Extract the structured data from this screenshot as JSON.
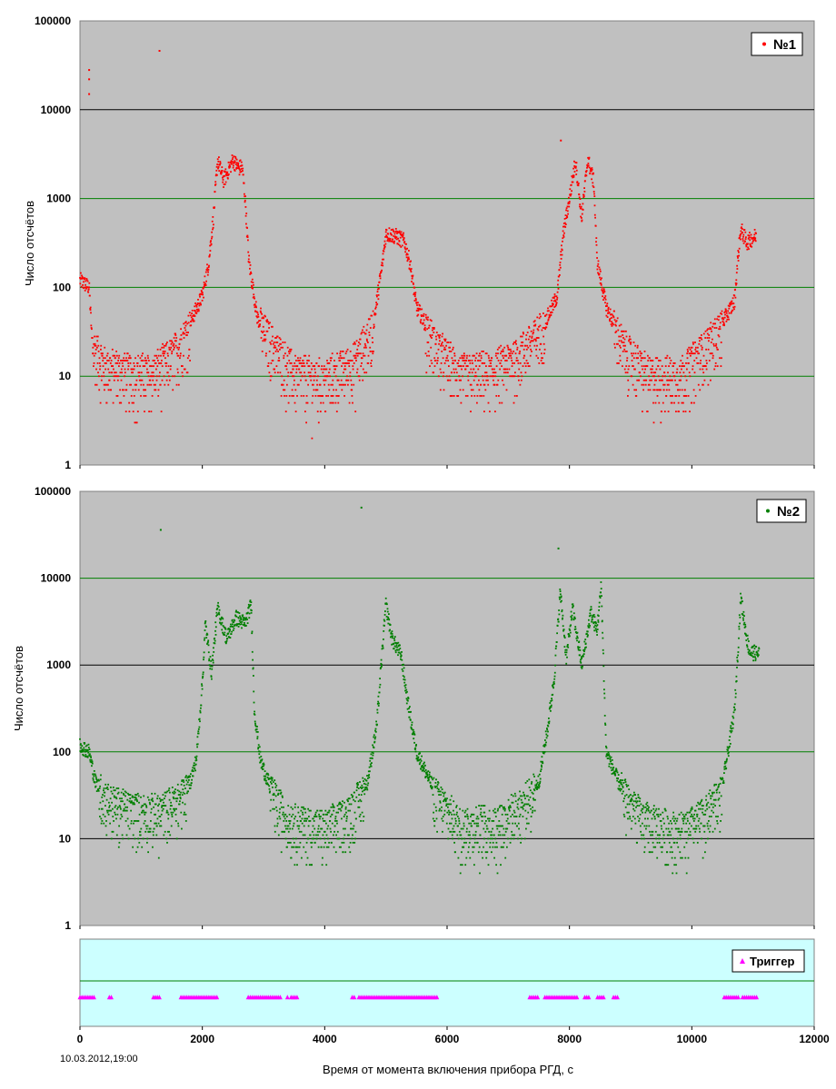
{
  "chart_data": [
    {
      "type": "scatter",
      "ylabel": "Число отсчётов",
      "yscale": "log",
      "ylim": [
        1,
        100000
      ],
      "xlim": [
        0,
        12000
      ],
      "y_tick_labels": [
        "1",
        "10",
        "100",
        "1000",
        "10000",
        "100000"
      ],
      "background_color": "#c0c0c0",
      "grid": true,
      "legend_position": "top-right",
      "series": [
        {
          "name": "№1",
          "color": "#ff0000",
          "profile": [
            [
              0,
              120
            ],
            [
              150,
              100
            ],
            [
              200,
              25
            ],
            [
              400,
              14
            ],
            [
              800,
              12
            ],
            [
              1200,
              12
            ],
            [
              1500,
              18
            ],
            [
              1800,
              40
            ],
            [
              2000,
              80
            ],
            [
              2100,
              180
            ],
            [
              2180,
              600
            ],
            [
              2250,
              2700
            ],
            [
              2350,
              1600
            ],
            [
              2500,
              2700
            ],
            [
              2600,
              2200
            ],
            [
              2650,
              2300
            ],
            [
              2700,
              1000
            ],
            [
              2760,
              200
            ],
            [
              2900,
              45
            ],
            [
              3200,
              22
            ],
            [
              3500,
              12
            ],
            [
              4000,
              10
            ],
            [
              4500,
              16
            ],
            [
              4800,
              40
            ],
            [
              4950,
              200
            ],
            [
              5000,
              400
            ],
            [
              5150,
              380
            ],
            [
              5300,
              330
            ],
            [
              5400,
              180
            ],
            [
              5500,
              60
            ],
            [
              5800,
              25
            ],
            [
              6200,
              12
            ],
            [
              6700,
              12
            ],
            [
              7200,
              20
            ],
            [
              7600,
              40
            ],
            [
              7800,
              80
            ],
            [
              7900,
              400
            ],
            [
              8000,
              1000
            ],
            [
              8100,
              2700
            ],
            [
              8200,
              600
            ],
            [
              8300,
              2800
            ],
            [
              8400,
              1500
            ],
            [
              8450,
              200
            ],
            [
              8600,
              60
            ],
            [
              8900,
              22
            ],
            [
              9300,
              11
            ],
            [
              9800,
              11
            ],
            [
              10200,
              22
            ],
            [
              10500,
              40
            ],
            [
              10700,
              70
            ],
            [
              10750,
              200
            ],
            [
              10800,
              450
            ],
            [
              10900,
              320
            ],
            [
              11050,
              380
            ]
          ],
          "outliers": [
            [
              150,
              28000
            ],
            [
              150,
              22000
            ],
            [
              150,
              15000
            ],
            [
              1300,
              46000
            ],
            [
              7860,
              4500
            ]
          ],
          "x_range": [
            0,
            11050
          ]
        }
      ]
    },
    {
      "type": "scatter",
      "ylabel": "Число отсчётов",
      "yscale": "log",
      "ylim": [
        1,
        100000
      ],
      "xlim": [
        0,
        12000
      ],
      "y_tick_labels": [
        "1",
        "10",
        "100",
        "1000",
        "10000",
        "100000"
      ],
      "background_color": "#c0c0c0",
      "grid": true,
      "legend_position": "top-right",
      "series": [
        {
          "name": "№2",
          "color": "#007f00",
          "profile": [
            [
              0,
              120
            ],
            [
              150,
              100
            ],
            [
              250,
              45
            ],
            [
              500,
              28
            ],
            [
              1000,
              22
            ],
            [
              1300,
              22
            ],
            [
              1600,
              30
            ],
            [
              1800,
              45
            ],
            [
              1900,
              80
            ],
            [
              2000,
              600
            ],
            [
              2050,
              3000
            ],
            [
              2150,
              800
            ],
            [
              2250,
              4500
            ],
            [
              2400,
              2000
            ],
            [
              2550,
              3500
            ],
            [
              2700,
              3000
            ],
            [
              2800,
              5000
            ],
            [
              2850,
              300
            ],
            [
              2950,
              80
            ],
            [
              3100,
              40
            ],
            [
              3400,
              18
            ],
            [
              4000,
              14
            ],
            [
              4400,
              22
            ],
            [
              4700,
              45
            ],
            [
              4850,
              200
            ],
            [
              5000,
              5000
            ],
            [
              5100,
              2000
            ],
            [
              5250,
              1300
            ],
            [
              5350,
              400
            ],
            [
              5500,
              100
            ],
            [
              5800,
              35
            ],
            [
              6200,
              16
            ],
            [
              6800,
              16
            ],
            [
              7200,
              25
            ],
            [
              7500,
              45
            ],
            [
              7650,
              200
            ],
            [
              7750,
              700
            ],
            [
              7850,
              7000
            ],
            [
              7950,
              1200
            ],
            [
              8050,
              4500
            ],
            [
              8200,
              1000
            ],
            [
              8350,
              4000
            ],
            [
              8450,
              2500
            ],
            [
              8520,
              8000
            ],
            [
              8600,
              100
            ],
            [
              8800,
              45
            ],
            [
              9200,
              18
            ],
            [
              9800,
              13
            ],
            [
              10200,
              20
            ],
            [
              10500,
              40
            ],
            [
              10700,
              300
            ],
            [
              10800,
              6000
            ],
            [
              10900,
              2000
            ],
            [
              10950,
              1400
            ],
            [
              11100,
              1350
            ]
          ],
          "outliers": [
            [
              1320,
              36000
            ],
            [
              4600,
              65000
            ],
            [
              7820,
              22000
            ]
          ],
          "x_range": [
            0,
            11100
          ]
        }
      ]
    },
    {
      "type": "scatter",
      "xlabel": "Время от момента включения прибора РГД, с",
      "xlim": [
        0,
        12000
      ],
      "x_tick_labels": [
        "0",
        "2000",
        "4000",
        "6000",
        "8000",
        "10000",
        "12000"
      ],
      "background_color": "#ccffff",
      "legend_position": "top-right",
      "series": [
        {
          "name": "Триггер",
          "color": "#ff00ff",
          "level": 0.33,
          "intervals": [
            [
              0,
              230
            ],
            [
              480,
              540
            ],
            [
              1200,
              1320
            ],
            [
              1650,
              2250
            ],
            [
              2750,
              3300
            ],
            [
              3390,
              3420
            ],
            [
              3450,
              3550
            ],
            [
              4450,
              4500
            ],
            [
              4560,
              5860
            ],
            [
              7350,
              7500
            ],
            [
              7600,
              8130
            ],
            [
              8250,
              8320
            ],
            [
              8460,
              8560
            ],
            [
              8720,
              8800
            ],
            [
              10530,
              10780
            ],
            [
              10830,
              11060
            ]
          ]
        }
      ]
    }
  ],
  "start_datetime": "10.03.2012,19:00"
}
